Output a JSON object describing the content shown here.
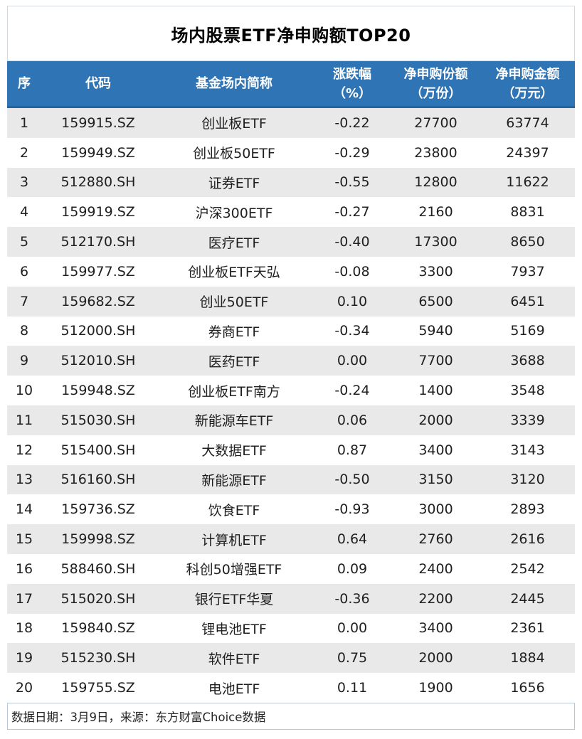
{
  "chart_data": {
    "type": "table",
    "title": "场内股票ETF净申购额TOP20",
    "columns": [
      {
        "line1": "序",
        "line2": ""
      },
      {
        "line1": "代码",
        "line2": ""
      },
      {
        "line1": "基金场内简称",
        "line2": ""
      },
      {
        "line1": "涨跌幅",
        "line2": "（%）"
      },
      {
        "line1": "净申购份额",
        "line2": "（万份）"
      },
      {
        "line1": "净申购金额",
        "line2": "（万元）"
      }
    ],
    "column_keys": [
      "rank",
      "code",
      "fund_name",
      "change_pct",
      "net_subscription_shares_wan",
      "net_subscription_amount_wan"
    ],
    "rows": [
      [
        "1",
        "159915.SZ",
        "创业板ETF",
        "-0.22",
        "27700",
        "63774"
      ],
      [
        "2",
        "159949.SZ",
        "创业板50ETF",
        "-0.29",
        "23800",
        "24397"
      ],
      [
        "3",
        "512880.SH",
        "证券ETF",
        "-0.55",
        "12800",
        "11622"
      ],
      [
        "4",
        "159919.SZ",
        "沪深300ETF",
        "-0.27",
        "2160",
        "8831"
      ],
      [
        "5",
        "512170.SH",
        "医疗ETF",
        "-0.40",
        "17300",
        "8650"
      ],
      [
        "6",
        "159977.SZ",
        "创业板ETF天弘",
        "-0.08",
        "3300",
        "7937"
      ],
      [
        "7",
        "159682.SZ",
        "创业50ETF",
        "0.10",
        "6500",
        "6451"
      ],
      [
        "8",
        "512000.SH",
        "券商ETF",
        "-0.34",
        "5940",
        "5169"
      ],
      [
        "9",
        "512010.SH",
        "医药ETF",
        "0.00",
        "7700",
        "3688"
      ],
      [
        "10",
        "159948.SZ",
        "创业板ETF南方",
        "-0.24",
        "1400",
        "3548"
      ],
      [
        "11",
        "515030.SH",
        "新能源车ETF",
        "0.06",
        "2000",
        "3339"
      ],
      [
        "12",
        "515400.SH",
        "大数据ETF",
        "0.87",
        "3400",
        "3143"
      ],
      [
        "13",
        "516160.SH",
        "新能源ETF",
        "-0.50",
        "3150",
        "3120"
      ],
      [
        "14",
        "159736.SZ",
        "饮食ETF",
        "-0.93",
        "3000",
        "2893"
      ],
      [
        "15",
        "159998.SZ",
        "计算机ETF",
        "0.64",
        "2760",
        "2616"
      ],
      [
        "16",
        "588460.SH",
        "科创50增强ETF",
        "0.09",
        "2400",
        "2542"
      ],
      [
        "17",
        "515020.SH",
        "银行ETF华夏",
        "-0.36",
        "2200",
        "2445"
      ],
      [
        "18",
        "159840.SZ",
        "锂电池ETF",
        "0.00",
        "3400",
        "2361"
      ],
      [
        "19",
        "515230.SH",
        "软件ETF",
        "0.75",
        "2000",
        "1884"
      ],
      [
        "20",
        "159755.SZ",
        "电池ETF",
        "0.11",
        "1900",
        "1656"
      ]
    ],
    "footnote": "数据日期：3月9日，来源：东方财富Choice数据",
    "layout": {
      "grid": "off",
      "row_striping": "odd-rows-gray"
    }
  },
  "colors": {
    "header_bg": "#2F74B4",
    "header_underline": "#27639D",
    "header_text": "#FFFFFF",
    "row_alt_bg": "#E9E9E9",
    "body_text": "#1F1F1F",
    "title_box_border": "#D4D9DE",
    "footer_border": "#B9C6DA"
  }
}
